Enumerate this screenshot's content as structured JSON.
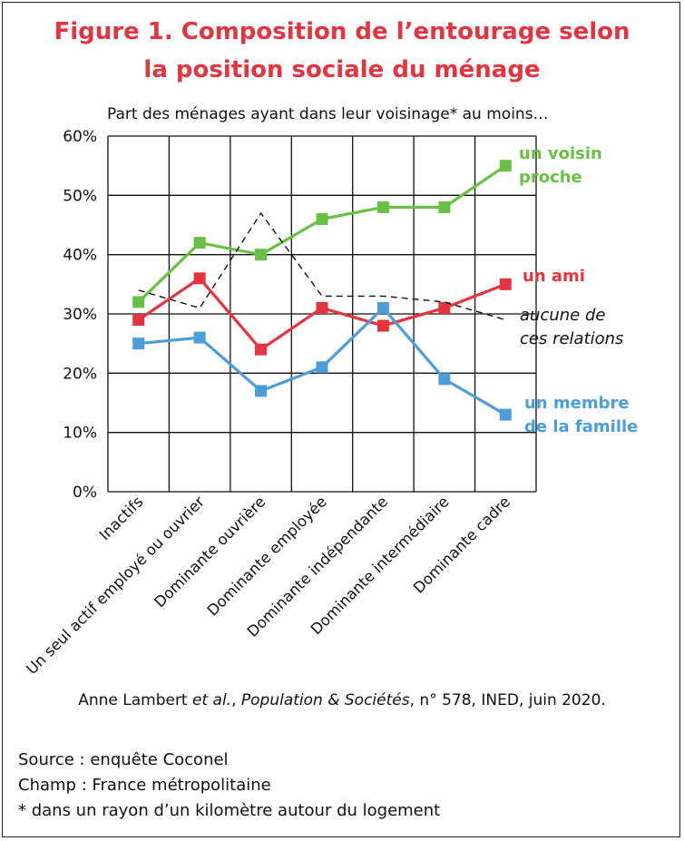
{
  "figure": {
    "title_line1": "Figure 1. Composition de l’entourage selon",
    "title_line2": "la position sociale du ménage",
    "subtitle": "Part des ménages ayant dans leur voisinage* au moins…"
  },
  "credit": {
    "author": "Anne Lambert ",
    "etal": "et al.",
    "sep1": ", ",
    "journal": "Population & Sociétés",
    "rest": ", n° 578, INED, juin 2020."
  },
  "notes": {
    "source": "Source : enquête Coconel",
    "champ": "Champ : France métropolitaine",
    "footnote": "* dans un rayon d’un kilomètre autour du logement"
  },
  "chart_data": {
    "type": "line",
    "categories": [
      "Inactifs",
      "Un seul actif employé ou ouvrier",
      "Dominante ouvrière",
      "Dominante employée",
      "Dominante indépendante",
      "Dominante intermédiaire",
      "Dominante cadre"
    ],
    "ylim": [
      0,
      60
    ],
    "yticks": [
      0,
      10,
      20,
      30,
      40,
      50,
      60
    ],
    "ytick_labels": [
      "0%",
      "10%",
      "20%",
      "30%",
      "40%",
      "50%",
      "60%"
    ],
    "grid": true,
    "series": [
      {
        "name_lines": [
          "un voisin",
          "proche"
        ],
        "color": "#6abf45",
        "style": "solid-square",
        "values": [
          32,
          42,
          40,
          46,
          48,
          48,
          55
        ]
      },
      {
        "name_lines": [
          "un ami"
        ],
        "color": "#e2353f",
        "style": "solid-square",
        "values": [
          29,
          36,
          24,
          31,
          28,
          31,
          35
        ]
      },
      {
        "name_lines": [
          "aucune de",
          "ces relations"
        ],
        "color": "#111111",
        "style": "dashed",
        "values": [
          34,
          31,
          47,
          33,
          33,
          32,
          29
        ]
      },
      {
        "name_lines": [
          "un membre",
          "de la famille"
        ],
        "color": "#4d9dd6",
        "style": "solid-square",
        "values": [
          25,
          26,
          17,
          21,
          31,
          19,
          13
        ]
      }
    ]
  }
}
